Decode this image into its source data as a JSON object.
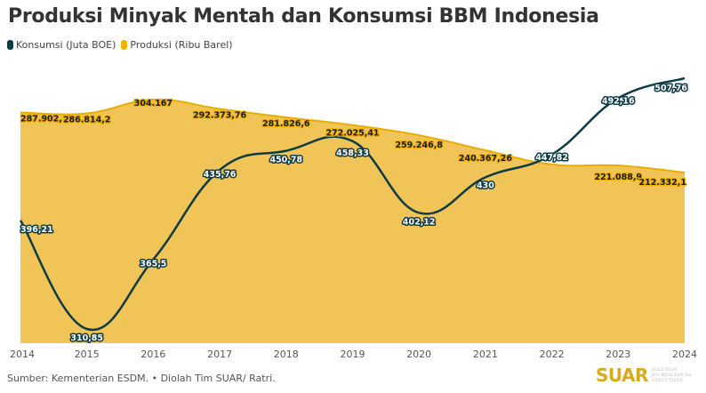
{
  "header": {
    "title": "Produksi Minyak Mentah dan Konsumsi BBM Indonesia"
  },
  "legend": [
    {
      "label": "Konsumsi (Juta BOE)",
      "color": "#0d3b45"
    },
    {
      "label": "Produksi (Ribu Barel)",
      "color": "#f0b400"
    }
  ],
  "footer": {
    "source": "Sumber: Kementerian ESDM. • Diolah Tim SUAR/ Ratri.",
    "logo_main": "SUAR",
    "logo_sub": "SOLUTION JOURNALISM for EXECUTIVES"
  },
  "chart_data": {
    "type": "line",
    "title": "Produksi Minyak Mentah dan Konsumsi BBM Indonesia",
    "xlabel": "",
    "ylabel": "",
    "grid": false,
    "legend_position": "top-left",
    "categories": [
      "2014",
      "2015",
      "2016",
      "2017",
      "2018",
      "2019",
      "2020",
      "2021",
      "2022",
      "2023",
      "2024"
    ],
    "series": [
      {
        "name": "Konsumsi (Juta BOE)",
        "type": "line",
        "color": "#0d3b45",
        "values": [
          396.21,
          310.85,
          365.5,
          435.76,
          450.78,
          458.33,
          402.12,
          430,
          447.82,
          492.16,
          507.76
        ],
        "labels": [
          "396,21",
          "310,85",
          "365,5",
          "435,76",
          "450,78",
          "458,33",
          "402,12",
          "430",
          "447,82",
          "492,16",
          "507,76"
        ]
      },
      {
        "name": "Produksi (Ribu Barel)",
        "type": "area",
        "color": "#f0c456",
        "values": [
          287902.15,
          286814.2,
          304167,
          292373.76,
          281826.6,
          272025.41,
          259246.8,
          240367.26,
          221088.9,
          221088.9,
          212332.1
        ],
        "labels": [
          "287.902,15",
          "286.814,2",
          "304.167",
          "292.373,76",
          "281.826,6",
          "272.025,41",
          "259.246,8",
          "240.367,26",
          "",
          "221.088,9",
          "212.332,1"
        ]
      }
    ]
  }
}
